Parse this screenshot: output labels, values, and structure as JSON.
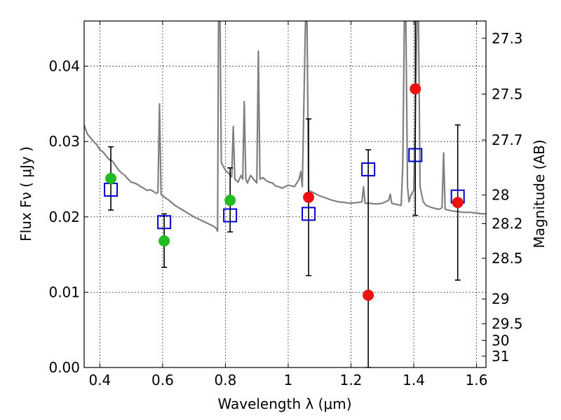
{
  "chart_data": {
    "type": "scatter",
    "xlabel": "Wavelength  λ (μm)",
    "ylabel": "Flux  Fν  ( μJy )",
    "ylabel_right": "Magnitude (AB)",
    "xlim": [
      0.35,
      1.63
    ],
    "ylim": [
      0.0,
      0.046
    ],
    "grid": true,
    "x_ticks": [
      0.4,
      0.6,
      0.8,
      1.0,
      1.2,
      1.4,
      1.6
    ],
    "x_tick_labels": [
      "0.4",
      "0.6",
      "0.8",
      "1",
      "1.2",
      "1.4",
      "1.6"
    ],
    "y_ticks": [
      0.0,
      0.01,
      0.02,
      0.03,
      0.04
    ],
    "y_tick_labels": [
      "0.00",
      "0.01",
      "0.02",
      "0.03",
      "0.04"
    ],
    "right_ticks": [
      {
        "label": "27.3",
        "flux": 0.0437
      },
      {
        "label": "27.5",
        "flux": 0.0363
      },
      {
        "label": "27.7",
        "flux": 0.0302
      },
      {
        "label": "28",
        "flux": 0.0229
      },
      {
        "label": "28.2",
        "flux": 0.0191
      },
      {
        "label": "28.5",
        "flux": 0.0145
      },
      {
        "label": "29",
        "flux": 0.0091
      },
      {
        "label": "29.5",
        "flux": 0.0058
      },
      {
        "label": "30",
        "flux": 0.0036
      },
      {
        "label": "31",
        "flux": 0.0015
      }
    ],
    "series": [
      {
        "kind": "sed-line",
        "color": "#808080",
        "points": [
          [
            0.35,
            0.0322
          ],
          [
            0.36,
            0.031
          ],
          [
            0.37,
            0.0305
          ],
          [
            0.38,
            0.03
          ],
          [
            0.39,
            0.0296
          ],
          [
            0.4,
            0.0289
          ],
          [
            0.41,
            0.0286
          ],
          [
            0.42,
            0.0281
          ],
          [
            0.43,
            0.0276
          ],
          [
            0.44,
            0.0274
          ],
          [
            0.45,
            0.0268
          ],
          [
            0.46,
            0.0262
          ],
          [
            0.47,
            0.0258
          ],
          [
            0.48,
            0.0255
          ],
          [
            0.49,
            0.025
          ],
          [
            0.5,
            0.0246
          ],
          [
            0.51,
            0.0245
          ],
          [
            0.52,
            0.0243
          ],
          [
            0.53,
            0.024
          ],
          [
            0.54,
            0.0238
          ],
          [
            0.55,
            0.0235
          ],
          [
            0.56,
            0.0236
          ],
          [
            0.57,
            0.0234
          ],
          [
            0.58,
            0.0231
          ],
          [
            0.585,
            0.0232
          ],
          [
            0.59,
            0.035
          ],
          [
            0.595,
            0.023
          ],
          [
            0.6,
            0.0228
          ],
          [
            0.62,
            0.0222
          ],
          [
            0.64,
            0.0215
          ],
          [
            0.66,
            0.021
          ],
          [
            0.68,
            0.0205
          ],
          [
            0.7,
            0.02
          ],
          [
            0.72,
            0.0196
          ],
          [
            0.74,
            0.0192
          ],
          [
            0.76,
            0.0188
          ],
          [
            0.77,
            0.0185
          ],
          [
            0.775,
            0.0181
          ],
          [
            0.778,
            0.046
          ],
          [
            0.783,
            0.046
          ],
          [
            0.787,
            0.0272
          ],
          [
            0.8,
            0.0262
          ],
          [
            0.81,
            0.0258
          ],
          [
            0.82,
            0.0253
          ],
          [
            0.825,
            0.032
          ],
          [
            0.83,
            0.025
          ],
          [
            0.84,
            0.0246
          ],
          [
            0.85,
            0.0255
          ],
          [
            0.855,
            0.025
          ],
          [
            0.86,
            0.0353
          ],
          [
            0.865,
            0.025
          ],
          [
            0.87,
            0.0245
          ],
          [
            0.88,
            0.0255
          ],
          [
            0.89,
            0.025
          ],
          [
            0.9,
            0.0245
          ],
          [
            0.905,
            0.042
          ],
          [
            0.91,
            0.025
          ],
          [
            0.92,
            0.0252
          ],
          [
            0.93,
            0.0248
          ],
          [
            0.94,
            0.0246
          ],
          [
            0.95,
            0.0245
          ],
          [
            0.96,
            0.0241
          ],
          [
            0.97,
            0.024
          ],
          [
            0.98,
            0.0238
          ],
          [
            1.0,
            0.0242
          ],
          [
            1.02,
            0.024
          ],
          [
            1.035,
            0.025
          ],
          [
            1.04,
            0.026
          ],
          [
            1.045,
            0.024
          ],
          [
            1.055,
            0.046
          ],
          [
            1.06,
            0.046
          ],
          [
            1.065,
            0.0235
          ],
          [
            1.08,
            0.0232
          ],
          [
            1.1,
            0.0228
          ],
          [
            1.12,
            0.0225
          ],
          [
            1.14,
            0.0222
          ],
          [
            1.16,
            0.022
          ],
          [
            1.18,
            0.0219
          ],
          [
            1.2,
            0.0218
          ],
          [
            1.22,
            0.0219
          ],
          [
            1.235,
            0.022
          ],
          [
            1.24,
            0.024
          ],
          [
            1.245,
            0.0218
          ],
          [
            1.26,
            0.0218
          ],
          [
            1.28,
            0.0217
          ],
          [
            1.3,
            0.0218
          ],
          [
            1.32,
            0.0222
          ],
          [
            1.325,
            0.023
          ],
          [
            1.33,
            0.0218
          ],
          [
            1.35,
            0.0216
          ],
          [
            1.36,
            0.0215
          ],
          [
            1.365,
            0.027
          ],
          [
            1.37,
            0.046
          ],
          [
            1.375,
            0.046
          ],
          [
            1.38,
            0.024
          ],
          [
            1.385,
            0.022
          ],
          [
            1.39,
            0.0228
          ],
          [
            1.4,
            0.0235
          ],
          [
            1.405,
            0.033
          ],
          [
            1.41,
            0.046
          ],
          [
            1.415,
            0.046
          ],
          [
            1.42,
            0.024
          ],
          [
            1.43,
            0.022
          ],
          [
            1.44,
            0.0215
          ],
          [
            1.46,
            0.0212
          ],
          [
            1.48,
            0.021
          ],
          [
            1.49,
            0.0212
          ],
          [
            1.495,
            0.0285
          ],
          [
            1.5,
            0.021
          ],
          [
            1.52,
            0.0208
          ],
          [
            1.54,
            0.0207
          ],
          [
            1.56,
            0.0206
          ],
          [
            1.58,
            0.0206
          ],
          [
            1.6,
            0.0205
          ],
          [
            1.62,
            0.0204
          ],
          [
            1.63,
            0.0204
          ]
        ]
      },
      {
        "kind": "model-squares",
        "color": "#0000cc",
        "x": [
          0.435,
          0.605,
          0.815,
          1.065,
          1.255,
          1.405,
          1.54
        ],
        "y": [
          0.0236,
          0.0193,
          0.0202,
          0.0204,
          0.0263,
          0.0282,
          0.0227
        ]
      },
      {
        "kind": "observed-green",
        "color": "#22bb22",
        "x": [
          0.435,
          0.605,
          0.815
        ],
        "y": [
          0.0251,
          0.0168,
          0.0222
        ],
        "yerr_low": [
          0.0209,
          0.0133,
          0.018
        ],
        "yerr_high": [
          0.0293,
          0.0204,
          0.0265
        ]
      },
      {
        "kind": "observed-red",
        "color": "#ee1111",
        "x": [
          1.065,
          1.255,
          1.405,
          1.54
        ],
        "y": [
          0.0226,
          0.0096,
          0.037,
          0.0219
        ],
        "yerr_low": [
          0.0122,
          0.0,
          0.0202,
          0.0116
        ],
        "yerr_high": [
          0.033,
          0.0289,
          0.046,
          0.0322
        ]
      }
    ]
  }
}
